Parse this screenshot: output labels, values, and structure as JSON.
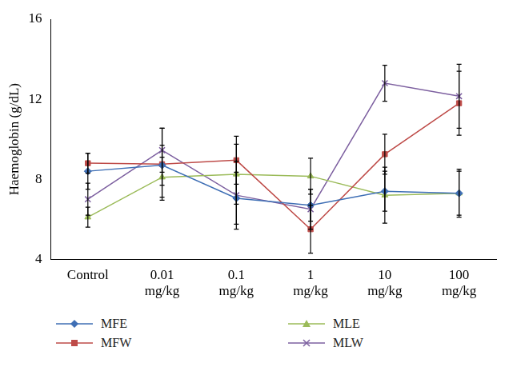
{
  "chart_data": {
    "type": "line",
    "y_label": "Haemoglobin (g/dL)",
    "categories": [
      "Control",
      "0.01 mg/kg",
      "0.1 mg/kg",
      "1 mg/kg",
      "10 mg/kg",
      "100 mg/kg"
    ],
    "series": [
      {
        "name": "MFE",
        "color": "#3f6fb5",
        "marker": "diamond",
        "values": [
          8.4,
          8.7,
          7.05,
          6.7,
          7.4,
          7.3
        ],
        "errors": [
          0.9,
          1.0,
          1.3,
          0.8,
          1.0,
          1.2
        ]
      },
      {
        "name": "MFW",
        "color": "#be4b48",
        "marker": "square",
        "values": [
          8.8,
          8.75,
          8.95,
          5.5,
          9.25,
          11.8
        ],
        "errors": [
          0.5,
          1.8,
          1.2,
          1.2,
          1.0,
          1.6
        ]
      },
      {
        "name": "MLE",
        "color": "#9bbb59",
        "marker": "triangle",
        "values": [
          6.1,
          8.1,
          8.25,
          8.15,
          7.2,
          7.3
        ],
        "errors": [
          0.5,
          1.0,
          1.5,
          0.9,
          1.4,
          1.1
        ]
      },
      {
        "name": "MLW",
        "color": "#7d60a0",
        "marker": "x",
        "values": [
          7.0,
          9.45,
          7.2,
          6.5,
          12.8,
          12.15
        ],
        "errors": [
          0.8,
          1.1,
          1.7,
          1.0,
          0.9,
          1.6
        ]
      }
    ],
    "ylim": [
      4,
      16
    ],
    "yticks": [
      4,
      8,
      12,
      16
    ],
    "grid": false,
    "legend": "bottom"
  }
}
